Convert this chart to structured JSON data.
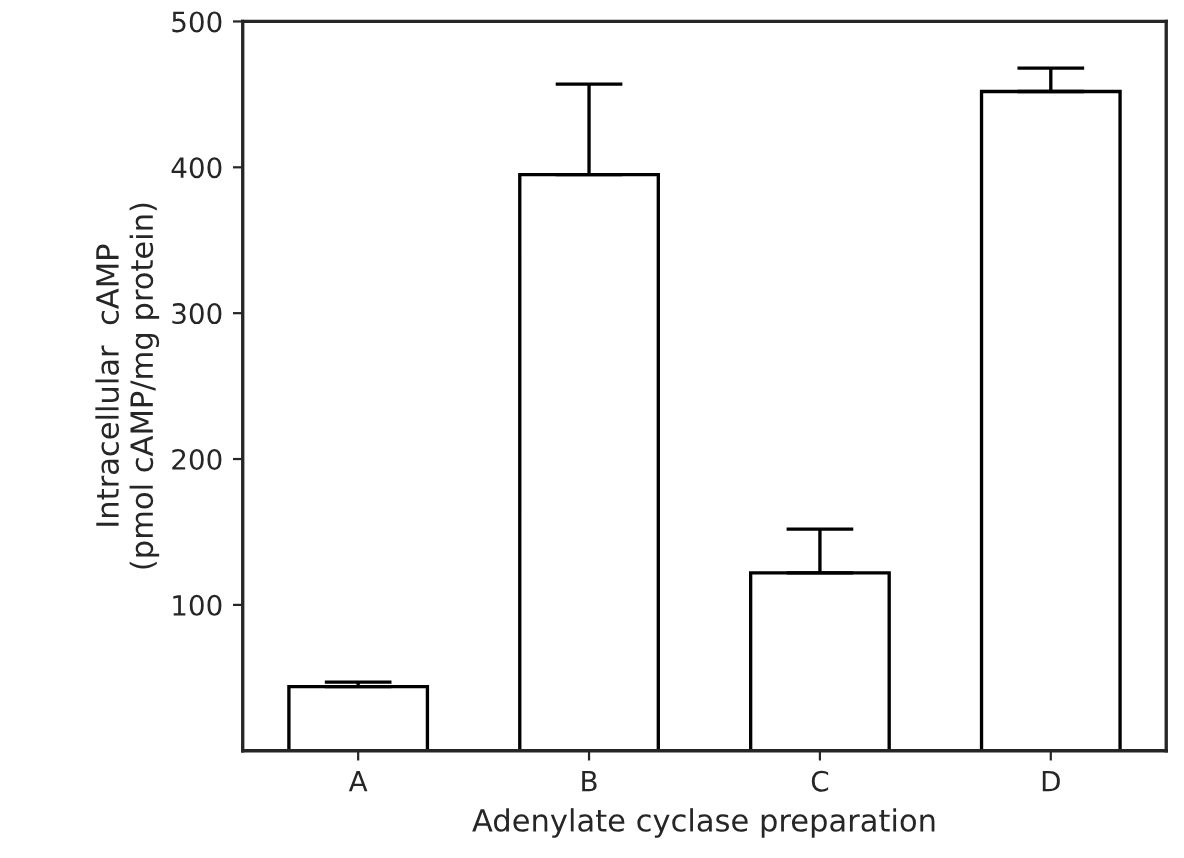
{
  "chart_data": {
    "type": "bar",
    "xlabel": "Adenylate cyclase preparation",
    "ylabel": "Intracellular  cAMP\n(pmol cAMP/mg protein)",
    "categories": [
      "A",
      "B",
      "C",
      "D"
    ],
    "values": [
      44,
      395,
      122,
      452
    ],
    "errors": [
      [
        44,
        47
      ],
      [
        395,
        457
      ],
      [
        122,
        152
      ],
      [
        452,
        468
      ]
    ],
    "color": "#ffffff",
    "ylim": [
      0,
      500
    ],
    "yticks": [
      100,
      200,
      300,
      400,
      500
    ],
    "grid": false
  }
}
